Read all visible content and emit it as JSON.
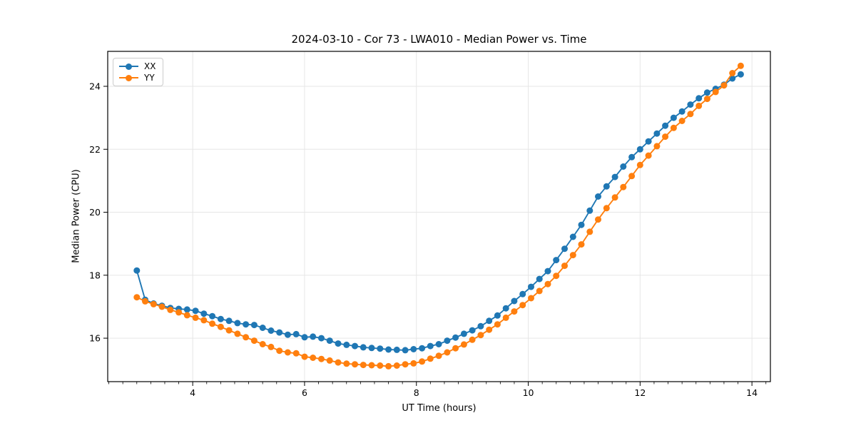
{
  "figure": {
    "title": "2024-03-10 - Cor 73 - LWA010 - Median Power vs. Time",
    "xlabel": "UT Time (hours)",
    "ylabel": "Median Power (CPU)"
  },
  "legend": {
    "items": [
      {
        "label": "XX",
        "color": "#1f77b4"
      },
      {
        "label": "YY",
        "color": "#ff7f0e"
      }
    ]
  },
  "colors": {
    "series_xx": "#1f77b4",
    "series_yy": "#ff7f0e",
    "grid": "#e6e6e6",
    "spine": "#000000",
    "background": "#ffffff"
  },
  "chart_data": {
    "type": "line",
    "title": "2024-03-10 - Cor 73 - LWA010 - Median Power vs. Time",
    "xlabel": "UT Time (hours)",
    "ylabel": "Median Power (CPU)",
    "xlim": [
      2.48,
      14.33
    ],
    "ylim": [
      14.62,
      25.11
    ],
    "x_major_ticks": [
      4,
      6,
      8,
      10,
      12,
      14
    ],
    "y_major_ticks": [
      16,
      18,
      20,
      22,
      24
    ],
    "x_minor_step": 0.25,
    "grid": true,
    "legend_position": "upper left",
    "marker": "o",
    "x": [
      3.0,
      3.15,
      3.3,
      3.45,
      3.6,
      3.75,
      3.9,
      4.05,
      4.2,
      4.35,
      4.5,
      4.65,
      4.8,
      4.95,
      5.1,
      5.25,
      5.4,
      5.55,
      5.7,
      5.85,
      6.0,
      6.15,
      6.3,
      6.45,
      6.6,
      6.75,
      6.9,
      7.05,
      7.2,
      7.35,
      7.5,
      7.65,
      7.8,
      7.95,
      8.1,
      8.25,
      8.4,
      8.55,
      8.7,
      8.85,
      9.0,
      9.15,
      9.3,
      9.45,
      9.6,
      9.75,
      9.9,
      10.05,
      10.2,
      10.35,
      10.5,
      10.65,
      10.8,
      10.95,
      11.1,
      11.25,
      11.4,
      11.55,
      11.7,
      11.85,
      12.0,
      12.15,
      12.3,
      12.45,
      12.6,
      12.75,
      12.9,
      13.05,
      13.2,
      13.35,
      13.5,
      13.65,
      13.8
    ],
    "series": [
      {
        "name": "XX",
        "color": "#1f77b4",
        "values": [
          18.15,
          17.22,
          17.1,
          17.03,
          16.96,
          16.93,
          16.91,
          16.87,
          16.78,
          16.7,
          16.61,
          16.55,
          16.48,
          16.44,
          16.42,
          16.33,
          16.24,
          16.18,
          16.11,
          16.13,
          16.03,
          16.05,
          16.0,
          15.92,
          15.83,
          15.79,
          15.75,
          15.71,
          15.69,
          15.67,
          15.64,
          15.63,
          15.62,
          15.65,
          15.68,
          15.75,
          15.81,
          15.92,
          16.02,
          16.14,
          16.25,
          16.38,
          16.55,
          16.72,
          16.95,
          17.18,
          17.4,
          17.63,
          17.88,
          18.13,
          18.48,
          18.84,
          19.22,
          19.6,
          20.05,
          20.5,
          20.82,
          21.12,
          21.45,
          21.75,
          22.0,
          22.25,
          22.5,
          22.75,
          23.0,
          23.2,
          23.42,
          23.62,
          23.8,
          23.92,
          24.05,
          24.25,
          24.38
        ]
      },
      {
        "name": "YY",
        "color": "#ff7f0e",
        "values": [
          17.3,
          17.17,
          17.08,
          17.0,
          16.9,
          16.82,
          16.73,
          16.65,
          16.57,
          16.46,
          16.36,
          16.25,
          16.14,
          16.03,
          15.92,
          15.81,
          15.72,
          15.6,
          15.55,
          15.52,
          15.41,
          15.38,
          15.34,
          15.29,
          15.23,
          15.19,
          15.17,
          15.15,
          15.14,
          15.13,
          15.11,
          15.13,
          15.17,
          15.2,
          15.26,
          15.35,
          15.44,
          15.55,
          15.68,
          15.8,
          15.95,
          16.1,
          16.27,
          16.44,
          16.65,
          16.85,
          17.05,
          17.27,
          17.5,
          17.72,
          17.98,
          18.3,
          18.64,
          18.98,
          19.38,
          19.77,
          20.13,
          20.47,
          20.8,
          21.15,
          21.5,
          21.8,
          22.1,
          22.4,
          22.68,
          22.9,
          23.12,
          23.38,
          23.6,
          23.82,
          24.03,
          24.42,
          24.65
        ]
      }
    ]
  }
}
